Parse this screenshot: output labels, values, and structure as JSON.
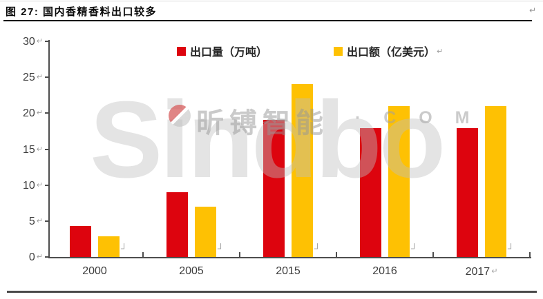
{
  "figure": {
    "title": "图 27: 国内香精香料出口较多",
    "return_mark": "↵"
  },
  "chart_data": {
    "type": "bar",
    "title": "",
    "categories": [
      "2000",
      "2005",
      "2015",
      "2016",
      "2017"
    ],
    "series": [
      {
        "name": "出口量（万吨）",
        "color": "#dd040e",
        "values": [
          4.3,
          9.0,
          19.1,
          17.9,
          17.9
        ]
      },
      {
        "name": "出口额（亿美元）",
        "color": "#fec103",
        "values": [
          2.9,
          7.0,
          24.1,
          21.0,
          21.0
        ]
      }
    ],
    "xlabel": "",
    "ylabel": "",
    "ylim": [
      0,
      30
    ],
    "yticks": [
      0,
      5,
      10,
      15,
      20,
      25,
      30
    ],
    "grid": false,
    "legend_position": "top-center",
    "axis_return_mark": "↵",
    "corner_mark": "┘"
  },
  "watermark": {
    "brand": "Sindbo",
    "brand_cn": "昕镈智能",
    "suffix": "· C O M"
  },
  "colors": {
    "bar_red": "#dd040e",
    "bar_yellow": "#fec103",
    "axis": "#4d4d4d",
    "tick_text": "#3d3d3d"
  }
}
